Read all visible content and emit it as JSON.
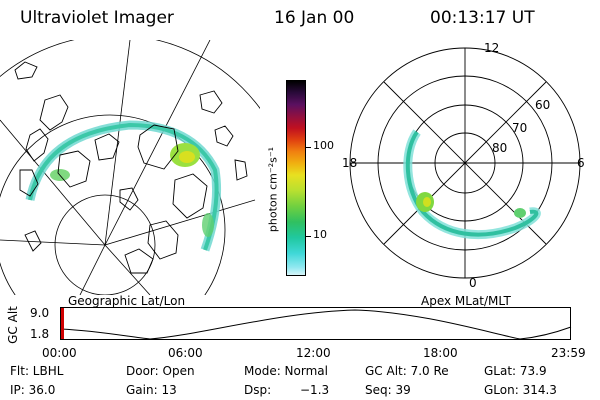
{
  "header": {
    "title": "Ultraviolet Imager",
    "date": "16 Jan 00",
    "time": "00:13:17 UT"
  },
  "colorbar": {
    "label": "photon cm⁻²s⁻¹",
    "ticks": [
      "100",
      "10"
    ],
    "colors": [
      "#000000",
      "#2a0a3a",
      "#5a1060",
      "#901040",
      "#c01020",
      "#e04010",
      "#f08010",
      "#f0b010",
      "#e8e020",
      "#b8e030",
      "#70d040",
      "#30c060",
      "#20c8a0",
      "#40d8d8",
      "#90e8f0",
      "#d8f6fa",
      "#ffffff"
    ]
  },
  "left_map": {
    "caption": "Geographic Lat/Lon"
  },
  "right_map": {
    "caption": "Apex MLat/MLT",
    "mlt_labels": [
      "12",
      "18",
      "6",
      "0"
    ],
    "lat_labels": [
      "60",
      "70",
      "80"
    ]
  },
  "timeline": {
    "axis_label": "GC Alt",
    "y_ticks": [
      "9.0",
      "1.8"
    ],
    "x_ticks": [
      "00:00",
      "06:00",
      "12:00",
      "18:00",
      "23:59"
    ],
    "marker_color": "#d00000"
  },
  "info": {
    "filter": "Flt: LBHL",
    "ip": "IP: 36.0",
    "door": "Door: Open",
    "gain": "Gain: 13",
    "mode": "Mode: Normal",
    "dsp": "Dsp:",
    "dsp_value": "−1.3",
    "gc_alt": "GC Alt: 7.0 Re",
    "seq": "Seq: 39",
    "glat": "GLat: 73.9",
    "glon": "GLon: 314.3"
  }
}
